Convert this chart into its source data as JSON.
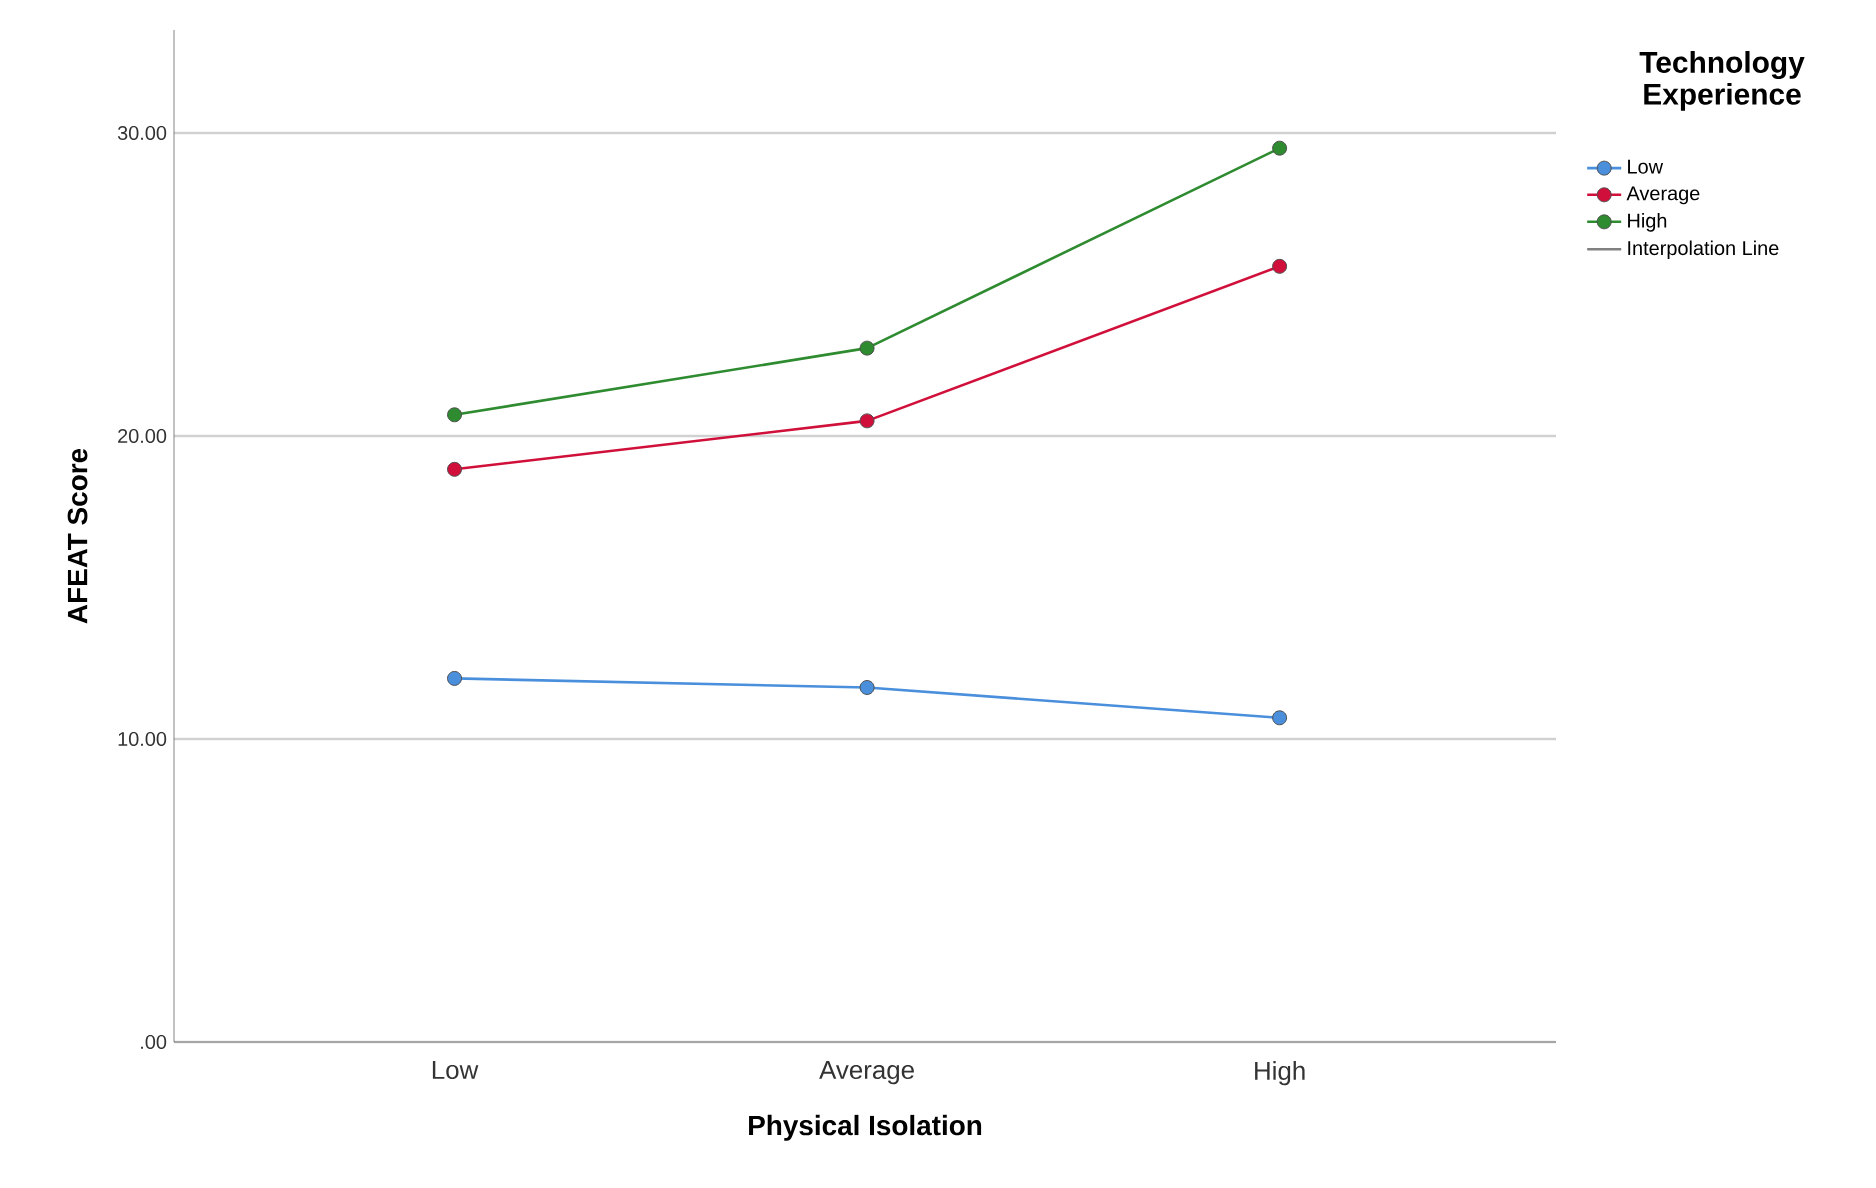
{
  "chart_data": {
    "type": "line",
    "xlabel": "Physical Isolation",
    "ylabel": "AFEAT Score",
    "legend_title": "Technology Experience",
    "categories": [
      "Low",
      "Average",
      "High"
    ],
    "series": [
      {
        "name": "Low",
        "color": "#4a8fdc",
        "values": [
          12.0,
          11.7,
          10.7
        ]
      },
      {
        "name": "Average",
        "color": "#d0103a",
        "values": [
          18.9,
          20.5,
          25.6
        ]
      },
      {
        "name": "High",
        "color": "#2e8b30",
        "values": [
          20.7,
          22.9,
          29.5
        ]
      },
      {
        "name": "Interpolation Line",
        "color": "#808080",
        "marker": "none",
        "values": [
          null,
          null,
          null
        ]
      }
    ],
    "ylim": [
      0,
      33.4
    ],
    "yticks": [
      {
        "value": 0,
        "label": ".00"
      },
      {
        "value": 10,
        "label": "10.00"
      },
      {
        "value": 20,
        "label": "20.00"
      },
      {
        "value": 30,
        "label": "30.00"
      }
    ],
    "grid": "y",
    "legend": "right",
    "marker": "circle",
    "line_style": "solid"
  }
}
